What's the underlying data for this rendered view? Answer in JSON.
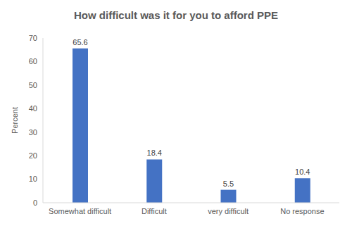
{
  "chart_data": {
    "type": "bar",
    "title": "How difficult was it for you to afford PPE",
    "y_label": "Percent",
    "categories": [
      "Somewhat difficult",
      "Difficult",
      "very difficult",
      "No response"
    ],
    "values": [
      65.6,
      18.4,
      5.5,
      10.4
    ],
    "color": "#4472c4",
    "ylim": [
      0,
      70
    ],
    "yticks": [
      0,
      10,
      20,
      30,
      40,
      50,
      60,
      70
    ],
    "grid": false,
    "data_labels": true
  }
}
